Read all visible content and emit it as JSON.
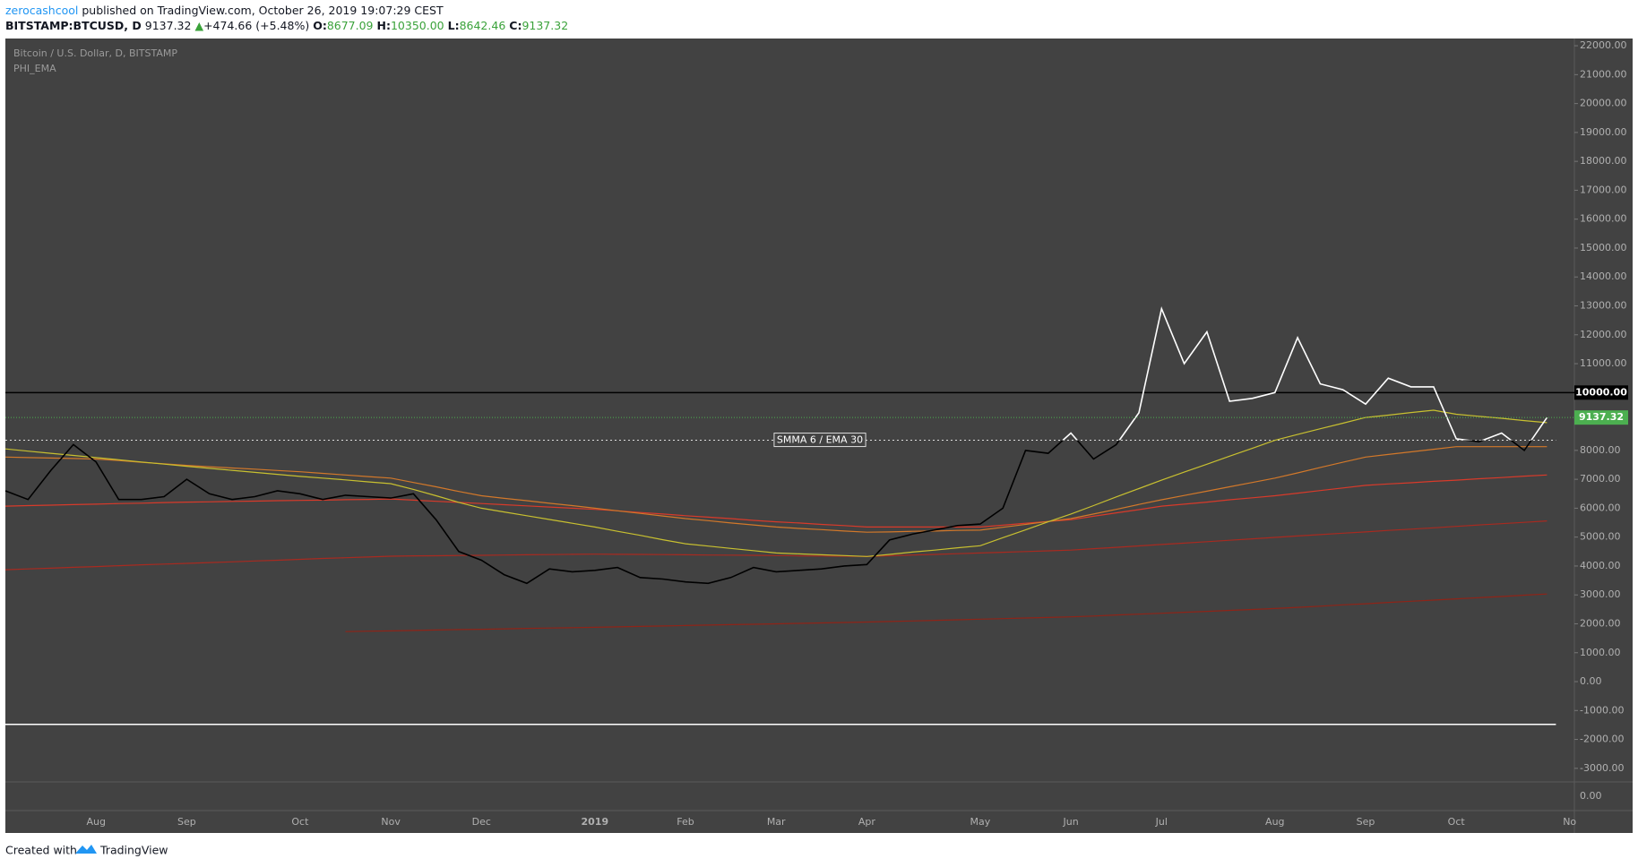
{
  "header": {
    "author": "zerocashcool",
    "published": "published on TradingView.com, October 26, 2019 19:07:29 CEST",
    "symbol": "BITSTAMP:BTCUSD, D",
    "last": "9137.32",
    "arrow": "▲",
    "change": "+474.66 (+5.48%)",
    "ohlc": [
      {
        "label": "O:",
        "value": "8677.09"
      },
      {
        "label": "H:",
        "value": "10350.00"
      },
      {
        "label": "L:",
        "value": "8642.46"
      },
      {
        "label": "C:",
        "value": "9137.32"
      }
    ]
  },
  "footer": {
    "text": "Created with",
    "brand": "TradingView"
  },
  "chart_data": {
    "type": "line",
    "title": "Bitcoin / U.S. Dollar, D, BITSTAMP",
    "subtitle": "PHI_EMA",
    "categories": [
      null,
      null,
      null,
      null,
      "Aug",
      null,
      null,
      null,
      "Sep",
      null,
      null,
      null,
      null,
      "Oct",
      null,
      null,
      null,
      "Nov",
      null,
      null,
      null,
      "Dec",
      null,
      null,
      null,
      null,
      "2019",
      null,
      null,
      null,
      "Feb",
      null,
      null,
      null,
      "Mar",
      null,
      null,
      null,
      "Apr",
      null,
      null,
      null,
      null,
      "May",
      null,
      null,
      null,
      "Jun",
      null,
      null,
      null,
      "Jul",
      null,
      null,
      null,
      null,
      "Aug",
      null,
      null,
      null,
      "Sep",
      null,
      null,
      null,
      "Oct",
      null,
      null,
      null,
      null,
      "No"
    ],
    "series": [
      {
        "color": "#ffffff",
        "color_below": "#000000",
        "badge_color": "#4caf50",
        "values": [
          6600,
          6300,
          7300,
          8200,
          7600,
          6300,
          6300,
          6400,
          7000,
          6500,
          6300,
          6400,
          6600,
          6500,
          6300,
          6450,
          6400,
          6350,
          6500,
          5600,
          4500,
          4200,
          3700,
          3400,
          3900,
          3800,
          3850,
          3950,
          3600,
          3550,
          3450,
          3400,
          3600,
          3950,
          3800,
          3850,
          3900,
          4000,
          4050,
          4900,
          5100,
          5250,
          5400,
          5450,
          6000,
          8000,
          7900,
          8600,
          7700,
          8200,
          9300,
          12900,
          11000,
          12100,
          9700,
          9800,
          10000,
          11900,
          10300,
          10100,
          9600,
          10500,
          10200,
          10200,
          8400,
          8300,
          8600,
          8000,
          9137.32,
          null
        ]
      },
      {
        "color": "#c8c030",
        "values": [
          8050,
          7975,
          7900,
          7825,
          7750,
          7675,
          7600,
          7525,
          7450,
          7380,
          7310,
          7240,
          7170,
          7100,
          7040,
          6980,
          6910,
          6850,
          6650,
          6430,
          6200,
          6000,
          5870,
          5740,
          5610,
          5480,
          5350,
          5200,
          5060,
          4910,
          4770,
          4690,
          4610,
          4530,
          4450,
          4420,
          4390,
          4360,
          4330,
          4400,
          4480,
          4550,
          4630,
          4700,
          4980,
          5250,
          5530,
          5800,
          6090,
          6390,
          6680,
          6970,
          7250,
          7520,
          7800,
          8070,
          8350,
          8550,
          8750,
          8940,
          9140,
          9220,
          9310,
          9390,
          9250,
          9180,
          9110,
          9030,
          8960,
          null
        ]
      },
      {
        "color": "#d2782a",
        "values": [
          7770,
          7750,
          7735,
          7720,
          7700,
          7650,
          7590,
          7535,
          7480,
          7435,
          7390,
          7350,
          7305,
          7260,
          7205,
          7150,
          7095,
          7040,
          6890,
          6740,
          6580,
          6430,
          6340,
          6260,
          6170,
          6090,
          6000,
          5910,
          5820,
          5730,
          5640,
          5570,
          5490,
          5420,
          5350,
          5300,
          5260,
          5210,
          5170,
          5180,
          5200,
          5210,
          5230,
          5240,
          5340,
          5440,
          5540,
          5640,
          5800,
          5960,
          6130,
          6290,
          6440,
          6590,
          6740,
          6890,
          7040,
          7220,
          7410,
          7590,
          7770,
          7860,
          7950,
          8040,
          8130,
          8130,
          8130,
          8130,
          8130,
          null
        ]
      },
      {
        "color": "#d83a2a",
        "values": [
          6070,
          6090,
          6105,
          6125,
          6140,
          6160,
          6175,
          6195,
          6210,
          6220,
          6235,
          6245,
          6260,
          6270,
          6280,
          6295,
          6305,
          6320,
          6280,
          6240,
          6200,
          6160,
          6120,
          6080,
          6040,
          6000,
          5960,
          5910,
          5850,
          5800,
          5740,
          5690,
          5640,
          5580,
          5530,
          5490,
          5440,
          5400,
          5350,
          5350,
          5350,
          5350,
          5350,
          5350,
          5410,
          5480,
          5540,
          5600,
          5720,
          5840,
          5950,
          6070,
          6140,
          6210,
          6290,
          6360,
          6430,
          6520,
          6610,
          6700,
          6790,
          6840,
          6880,
          6930,
          6970,
          7020,
          7060,
          7110,
          7150,
          null
        ]
      },
      {
        "color": "#a82a20",
        "values": [
          3870,
          3900,
          3925,
          3955,
          3980,
          4010,
          4040,
          4065,
          4090,
          4120,
          4145,
          4175,
          4200,
          4230,
          4260,
          4285,
          4310,
          4340,
          4350,
          4355,
          4365,
          4370,
          4380,
          4390,
          4395,
          4405,
          4410,
          4405,
          4400,
          4395,
          4390,
          4380,
          4375,
          4370,
          4360,
          4350,
          4345,
          4340,
          4330,
          4355,
          4380,
          4400,
          4425,
          4450,
          4475,
          4500,
          4525,
          4550,
          4600,
          4645,
          4695,
          4745,
          4790,
          4840,
          4890,
          4940,
          4990,
          5040,
          5085,
          5135,
          5180,
          5230,
          5275,
          5320,
          5370,
          5420,
          5465,
          5510,
          5560,
          null
        ]
      },
      {
        "color": "#8e2418",
        "values": [
          null,
          null,
          null,
          null,
          null,
          null,
          null,
          null,
          null,
          null,
          null,
          null,
          null,
          null,
          null,
          1730,
          1745,
          1755,
          1770,
          1785,
          1800,
          1810,
          1825,
          1840,
          1855,
          1865,
          1880,
          1895,
          1910,
          1925,
          1940,
          1955,
          1970,
          1985,
          2000,
          2015,
          2030,
          2045,
          2060,
          2080,
          2100,
          2120,
          2140,
          2160,
          2180,
          2200,
          2220,
          2240,
          2270,
          2305,
          2335,
          2365,
          2400,
          2430,
          2465,
          2495,
          2530,
          2570,
          2610,
          2655,
          2695,
          2740,
          2780,
          2820,
          2865,
          2905,
          2945,
          2990,
          3030,
          null
        ]
      }
    ],
    "ylim": [
      -3470,
      22250
    ],
    "yticks": [
      {
        "value": 22000,
        "label": "22000.00"
      },
      {
        "value": 21000,
        "label": "21000.00"
      },
      {
        "value": 20000,
        "label": "20000.00"
      },
      {
        "value": 19000,
        "label": "19000.00"
      },
      {
        "value": 18000,
        "label": "18000.00"
      },
      {
        "value": 17000,
        "label": "17000.00"
      },
      {
        "value": 16000,
        "label": "16000.00"
      },
      {
        "value": 15000,
        "label": "15000.00"
      },
      {
        "value": 14000,
        "label": "14000.00"
      },
      {
        "value": 13000,
        "label": "13000.00"
      },
      {
        "value": 12000,
        "label": "12000.00"
      },
      {
        "value": 11000,
        "label": "11000.00"
      },
      {
        "value": 8000,
        "label": "8000.00"
      },
      {
        "value": 7000,
        "label": "7000.00"
      },
      {
        "value": 6000,
        "label": "6000.00"
      },
      {
        "value": 5000,
        "label": "5000.00"
      },
      {
        "value": 4000,
        "label": "4000.00"
      },
      {
        "value": 3000,
        "label": "3000.00"
      },
      {
        "value": 2000,
        "label": "2000.00"
      },
      {
        "value": 1000,
        "label": "1000.00"
      },
      {
        "value": 0,
        "label": "0.00"
      },
      {
        "value": -1000,
        "label": "-1000.00"
      },
      {
        "value": -2000,
        "label": "-2000.00"
      },
      {
        "value": -3000,
        "label": "-3000.00"
      }
    ],
    "levels": [
      {
        "value": 8350,
        "label": "SMMA 6 / EMA 30",
        "color": "#dddddd"
      }
    ],
    "hlines": [
      {
        "value": 10000,
        "label": "10000.00",
        "color": "#000000"
      },
      {
        "value": -1480,
        "color": "#ffffff"
      }
    ],
    "lower_pane_ticks": [
      {
        "value": 0,
        "label": "0.00"
      }
    ]
  }
}
